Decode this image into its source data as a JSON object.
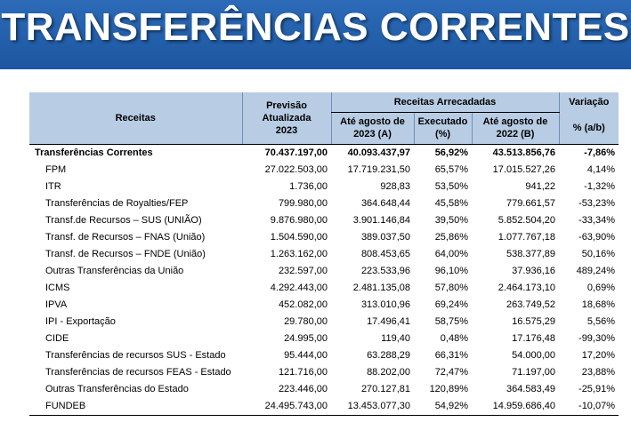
{
  "header": {
    "title": "TRANSFERÊNCIAS CORRENTES"
  },
  "table": {
    "columns": {
      "receitas": "Receitas",
      "previsao": "Previsão Atualizada 2023",
      "arrecadadas": "Receitas Arrecadadas",
      "ate2023": "Até agosto de 2023 (A)",
      "executado": "Executado (%)",
      "ate2022": "Até agosto de 2022 (B)",
      "variacao": "Variação",
      "variacao_unit": "% (a/b)"
    },
    "rows": [
      [
        "Transferências Correntes",
        "70.437.197,00",
        "40.093.437,97",
        "56,92%",
        "43.513.856,76",
        "-7,86%"
      ],
      [
        "FPM",
        "27.022.503,00",
        "17.719.231,50",
        "65,57%",
        "17.015.527,26",
        "4,14%"
      ],
      [
        "ITR",
        "1.736,00",
        "928,83",
        "53,50%",
        "941,22",
        "-1,32%"
      ],
      [
        "Transferências de Royalties/FEP",
        "799.980,00",
        "364.648,44",
        "45,58%",
        "779.661,57",
        "-53,23%"
      ],
      [
        "Transf.de Recursos – SUS (UNIÃO)",
        "9.876.980,00",
        "3.901.146,84",
        "39,50%",
        "5.852.504,20",
        "-33,34%"
      ],
      [
        "Transf. de Recursos – FNAS (União)",
        "1.504.590,00",
        "389.037,50",
        "25,86%",
        "1.077.767,18",
        "-63,90%"
      ],
      [
        "Transf. de Recursos – FNDE (União)",
        "1.263.162,00",
        "808.453,65",
        "64,00%",
        "538.377,89",
        "50,16%"
      ],
      [
        "Outras Transferências da União",
        "232.597,00",
        "223.533,96",
        "96,10%",
        "37.936,16",
        "489,24%"
      ],
      [
        "ICMS",
        "4.292.443,00",
        "2.481.135,08",
        "57,80%",
        "2.464.173,10",
        "0,69%"
      ],
      [
        "IPVA",
        "452.082,00",
        "313.010,96",
        "69,24%",
        "263.749,52",
        "18,68%"
      ],
      [
        "IPI - Exportação",
        "29.780,00",
        "17.496,41",
        "58,75%",
        "16.575,29",
        "5,56%"
      ],
      [
        "CIDE",
        "24.995,00",
        "119,40",
        "0,48%",
        "17.176,48",
        "-99,30%"
      ],
      [
        "Transferências de recursos SUS - Estado",
        "95.444,00",
        "63.288,29",
        "66,31%",
        "54.000,00",
        "17,20%"
      ],
      [
        "Transferências de recursos FEAS - Estado",
        "121.716,00",
        "88.202,00",
        "72,47%",
        "71.197,00",
        "23,88%"
      ],
      [
        "Outras Transferências do Estado",
        "223.446,00",
        "270.127,81",
        "120,89%",
        "364.583,49",
        "-25,91%"
      ],
      [
        "FUNDEB",
        "24.495.743,00",
        "13.453.077,30",
        "54,92%",
        "14.959.686,40",
        "-10,07%"
      ]
    ]
  }
}
